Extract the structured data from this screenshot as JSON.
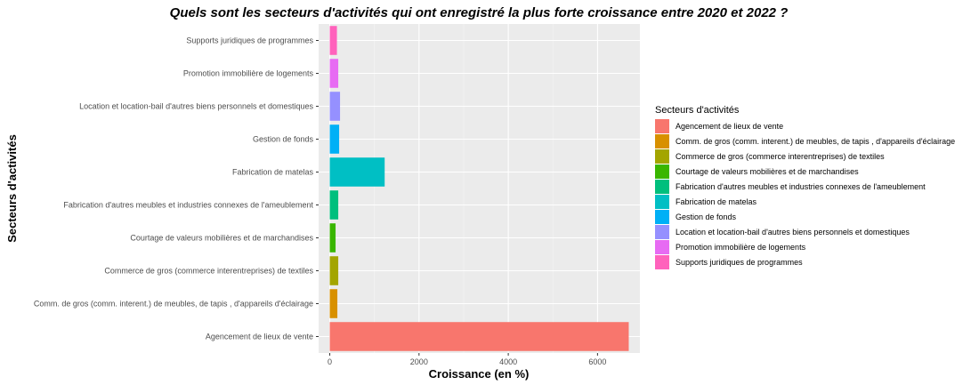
{
  "chart_data": {
    "type": "bar",
    "orientation": "horizontal",
    "title": "Quels sont les secteurs d'activités qui ont enregistré la plus forte croissance entre 2020 et 2022 ?",
    "xlabel": "Croissance (en %)",
    "ylabel": "Secteurs d'activités",
    "xlim": [
      -250,
      6950
    ],
    "xticks": [
      0,
      2000,
      4000,
      6000
    ],
    "grid": true,
    "legend_title": "Secteurs d'activités",
    "legend_position": "right",
    "categories": [
      "Agencement de lieux de vente",
      "Comm. de gros (comm. interent.) de meubles, de tapis , d'appareils d'éclairage",
      "Commerce de gros (commerce interentreprises) de textiles",
      "Courtage de valeurs mobilières et de marchandises",
      "Fabrication d'autres meubles et industries connexes de l'ameublement",
      "Fabrication de matelas",
      "Gestion de fonds",
      "Location et location-bail d'autres biens personnels et domestiques",
      "Promotion immobilière de logements",
      "Supports juridiques de programmes"
    ],
    "values": [
      6700,
      170,
      190,
      130,
      190,
      1230,
      210,
      230,
      190,
      160
    ],
    "colors": [
      "#F8766D",
      "#D89000",
      "#A3A500",
      "#39B600",
      "#00BF7D",
      "#00BFC4",
      "#00B0F6",
      "#9590FF",
      "#E76BF3",
      "#FF62BC"
    ]
  }
}
